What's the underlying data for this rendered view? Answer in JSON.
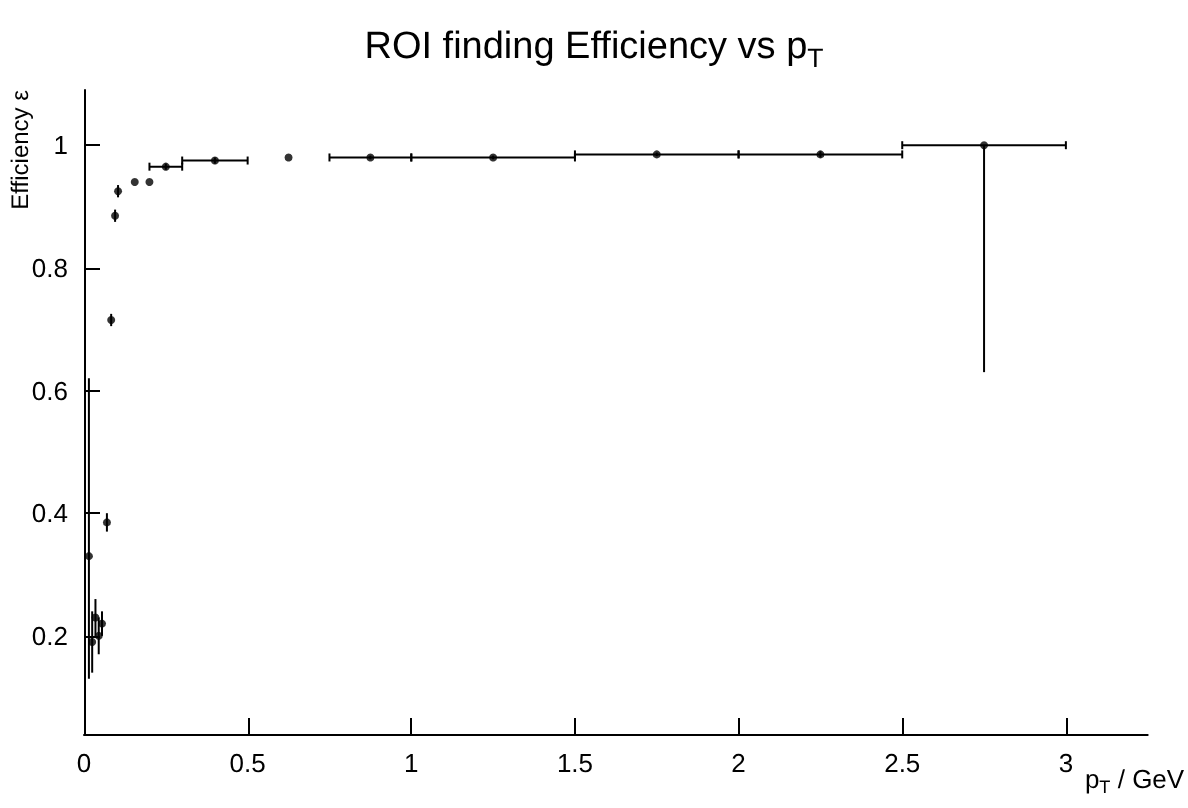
{
  "chart_data": {
    "type": "scatter",
    "title": "ROI finding Efficiency vs p$_{T}$",
    "xlabel": "p$_{T}$ / GeV",
    "ylabel": "Efficiency ε",
    "x": [
      0.015,
      0.025,
      0.035,
      0.045,
      0.055,
      0.07,
      0.083,
      0.095,
      0.104,
      0.155,
      0.2,
      0.25,
      0.4,
      0.625,
      0.875,
      1.25,
      1.75,
      2.25,
      2.75
    ],
    "series": [
      {
        "color": "#000000",
        "values": [
          0.33,
          0.19,
          0.23,
          0.2,
          0.22,
          0.385,
          0.715,
          0.885,
          0.925,
          0.94,
          0.94,
          0.965,
          0.975,
          0.98,
          0.98,
          0.98,
          0.985,
          0.985,
          1.0
        ],
        "errors": [
          [
            0.13,
            0.62
          ],
          0.05,
          0.03,
          0.03,
          0.02,
          0.015,
          0.01,
          0.01,
          0.01,
          null,
          null,
          0.005,
          0.005,
          null,
          0.003,
          0.003,
          0.003,
          0.005,
          [
            0.63,
            1.0
          ]
        ],
        "xerrors": [
          null,
          null,
          null,
          null,
          null,
          null,
          null,
          null,
          null,
          null,
          null,
          0.05,
          0.1,
          null,
          0.125,
          0.25,
          0.25,
          0.25,
          0.25
        ]
      }
    ],
    "xlim": [
      0,
      3.25
    ],
    "xticks": [
      0,
      0.5,
      1,
      1.5,
      2,
      2.5,
      3
    ],
    "ylim": [
      0.04,
      1.09
    ],
    "yticks": [
      0.2,
      0.4,
      0.6,
      0.8,
      1
    ],
    "marker": "circle",
    "grid": false
  }
}
